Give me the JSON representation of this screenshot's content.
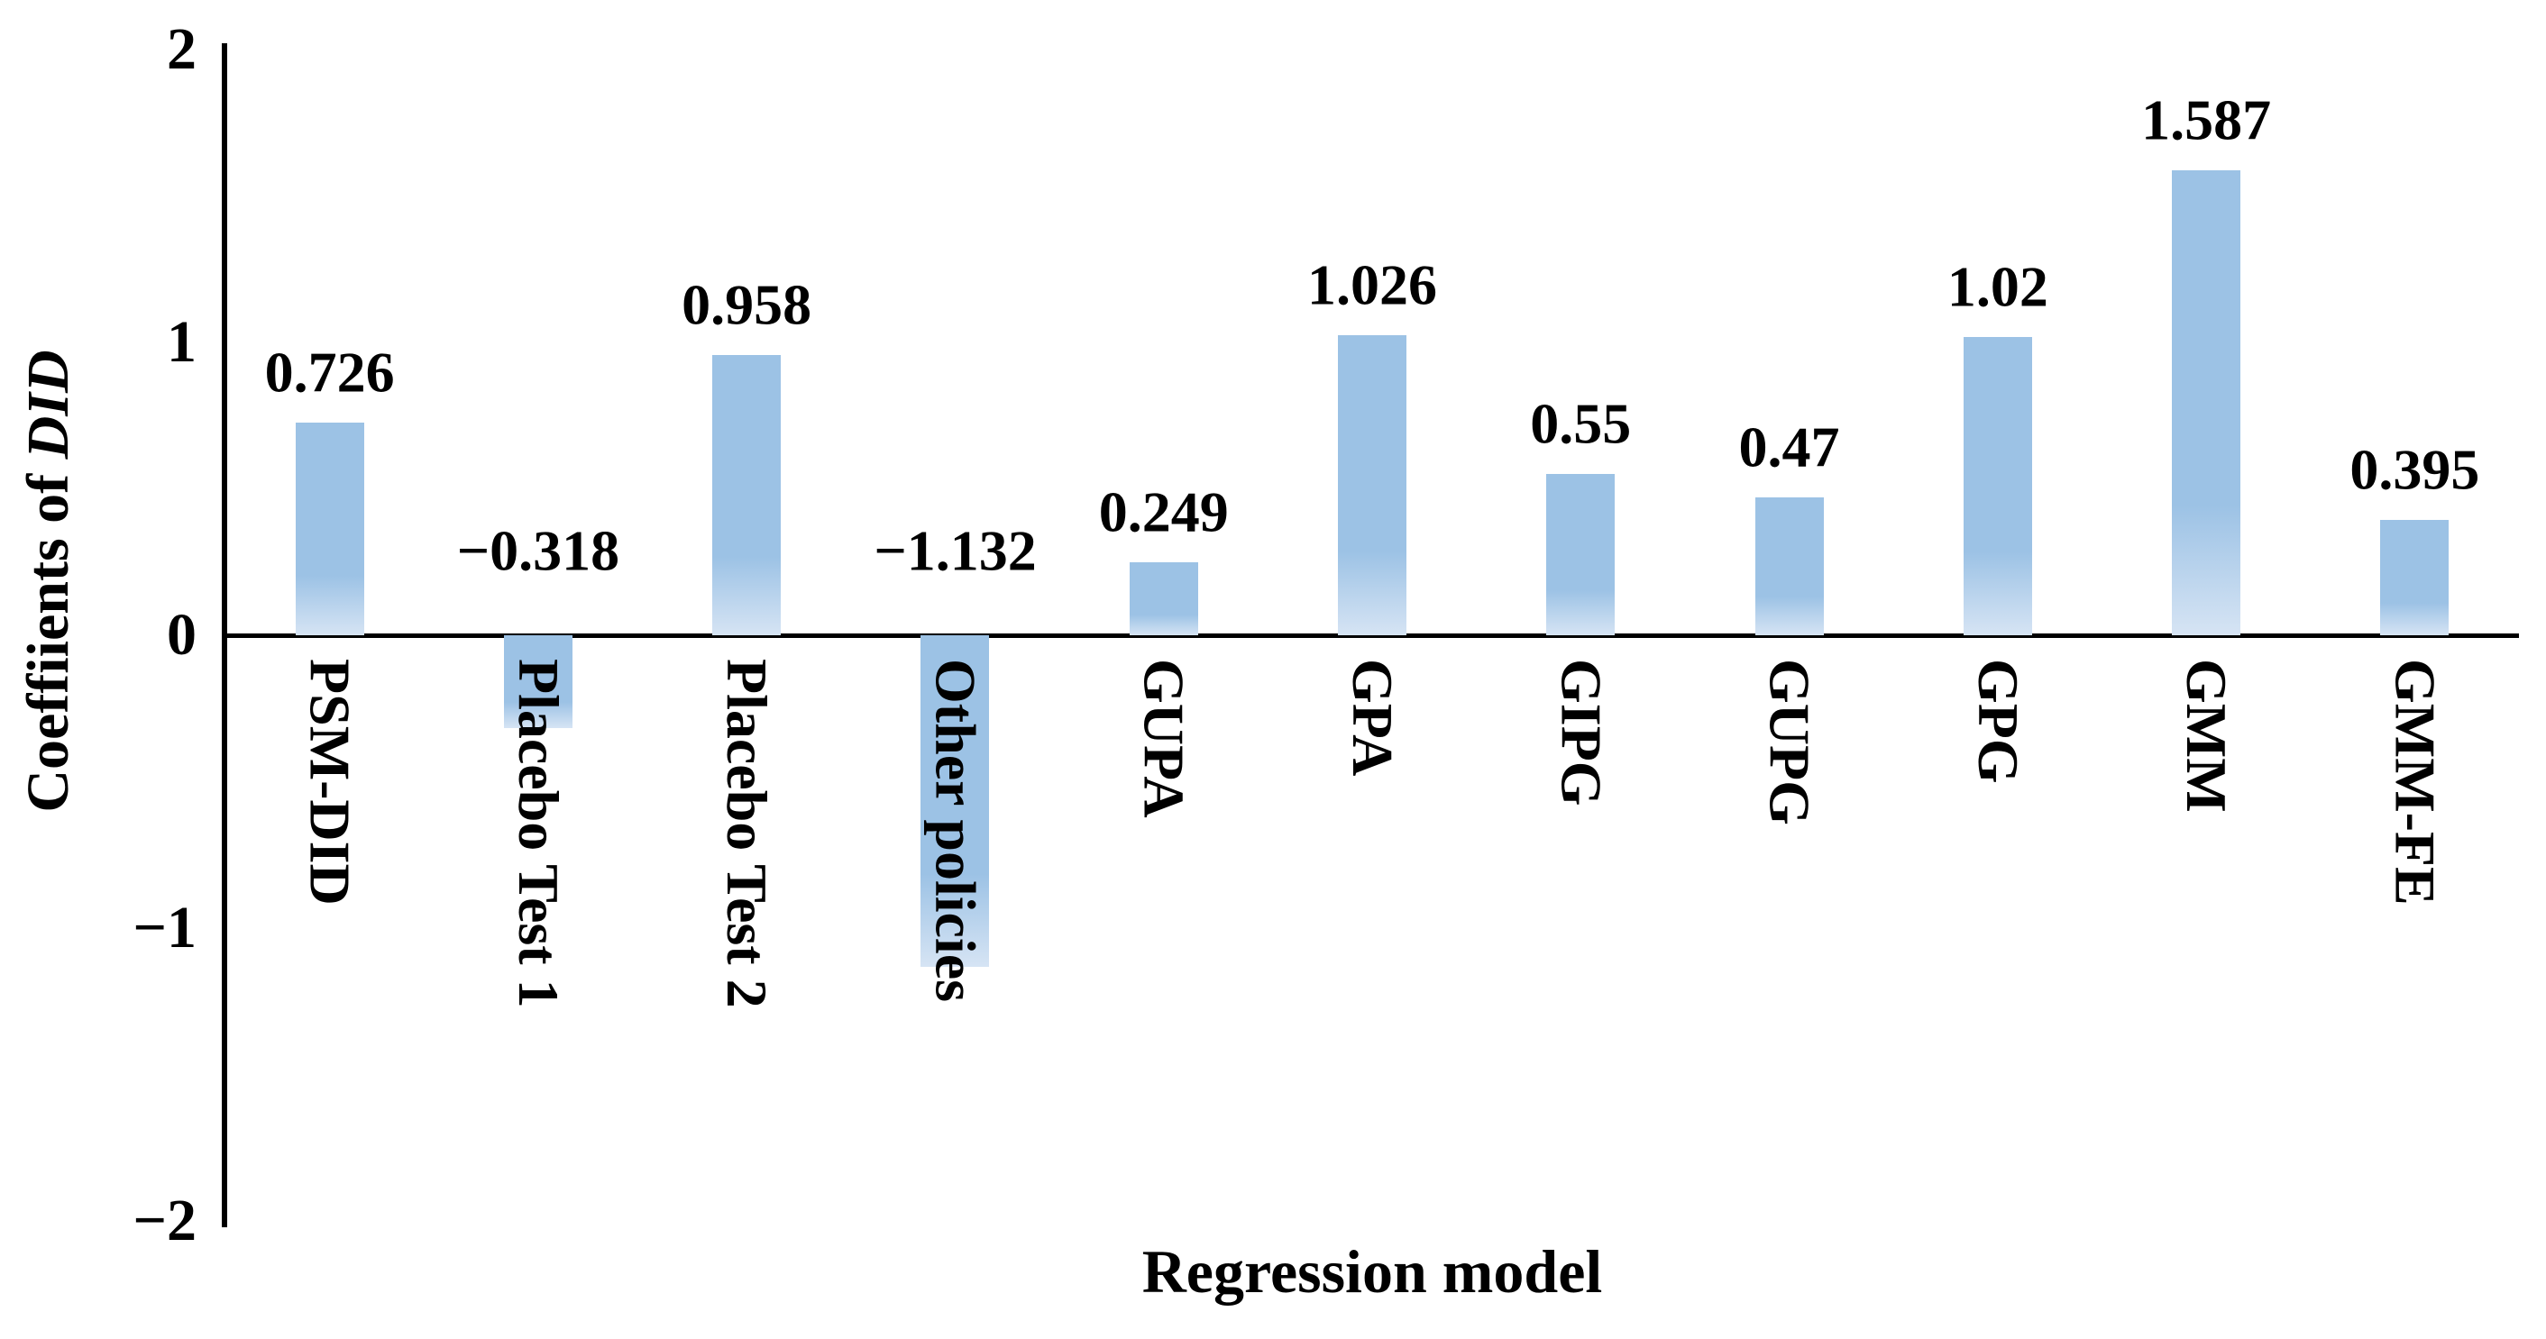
{
  "chart_data": {
    "type": "bar",
    "title": "",
    "categories": [
      "PSM-DID",
      "Placebo Test 1",
      "Placebo Test 2",
      "Other policies",
      "GUPA",
      "GPA",
      "GIPG",
      "GUPG",
      "GPG",
      "GMM",
      "GMM-FE"
    ],
    "values": [
      0.726,
      -0.318,
      0.958,
      -1.132,
      0.249,
      1.026,
      0.55,
      0.47,
      1.02,
      1.587,
      0.395
    ],
    "value_labels": [
      "0.726",
      "−0.318",
      "0.958",
      "−1.132",
      "0.249",
      "1.026",
      "0.55",
      "0.47",
      "1.02",
      "1.587",
      "0.395"
    ],
    "xlabel": "Regression model",
    "ylabel": "Coeffiients of DID",
    "ylabel_prefix": "Coeffiients of ",
    "ylabel_italic": "DID",
    "ylim": [
      -2,
      2
    ],
    "yticks": [
      -2,
      -1,
      0,
      1,
      2
    ],
    "ytick_labels": [
      "−2",
      "−1",
      "0",
      "1",
      "2"
    ],
    "grid": false,
    "legend": "none",
    "bar_color": "#9cc2e5",
    "bar_color_fade": "#d6e4f4",
    "axis_color": "#000000"
  }
}
